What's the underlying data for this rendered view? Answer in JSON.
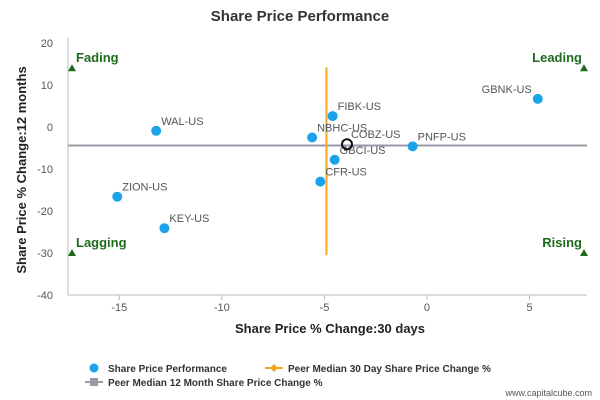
{
  "chart_data": {
    "type": "scatter",
    "title": "Share Price Performance",
    "xlabel": "Share Price % Change:30 days",
    "ylabel": "Share Price % Change:12 months",
    "xlim": [
      -17.5,
      7.8
    ],
    "ylim": [
      -40,
      20
    ],
    "xticks": [
      -15,
      -10,
      -5,
      0,
      5
    ],
    "yticks": [
      20,
      10,
      0,
      -10,
      -20,
      -30,
      -40
    ],
    "grid": false,
    "series": [
      {
        "name": "Share Price Performance",
        "color": "#1aa3e8",
        "points": [
          {
            "label": "GBNK-US",
            "x": 5.4,
            "y": 6.7
          },
          {
            "label": "FIBK-US",
            "x": -4.6,
            "y": 2.6
          },
          {
            "label": "WAL-US",
            "x": -13.2,
            "y": -0.9
          },
          {
            "label": "NBHC-US",
            "x": -5.6,
            "y": -2.5
          },
          {
            "label": "PNFP-US",
            "x": -0.7,
            "y": -4.6
          },
          {
            "label": "GBCI-US",
            "x": -4.5,
            "y": -7.8
          },
          {
            "label": "CFR-US",
            "x": -5.2,
            "y": -13.0
          },
          {
            "label": "ZION-US",
            "x": -15.1,
            "y": -16.6
          },
          {
            "label": "KEY-US",
            "x": -12.8,
            "y": -24.1
          }
        ]
      }
    ],
    "highlight_point": {
      "label": "COBZ-US",
      "x": -3.9,
      "y": -4.1
    },
    "peer_median_30day": {
      "name": "Peer Median 30 Day Share Price Change %",
      "x": -4.9,
      "y_range": [
        -30.5,
        14.2
      ],
      "color": "#f5a623"
    },
    "peer_median_12month": {
      "name": "Peer Median 12 Month Share Price Change %",
      "y": -4.4,
      "color": "#9a9aa6"
    },
    "quadrants": {
      "top_left": "Fading",
      "top_right": "Leading",
      "bottom_left": "Lagging",
      "bottom_right": "Rising",
      "marker_color": "#1e6b1e"
    },
    "legend_placement": "bottom-left"
  },
  "credit": "www.capitalcube.com"
}
